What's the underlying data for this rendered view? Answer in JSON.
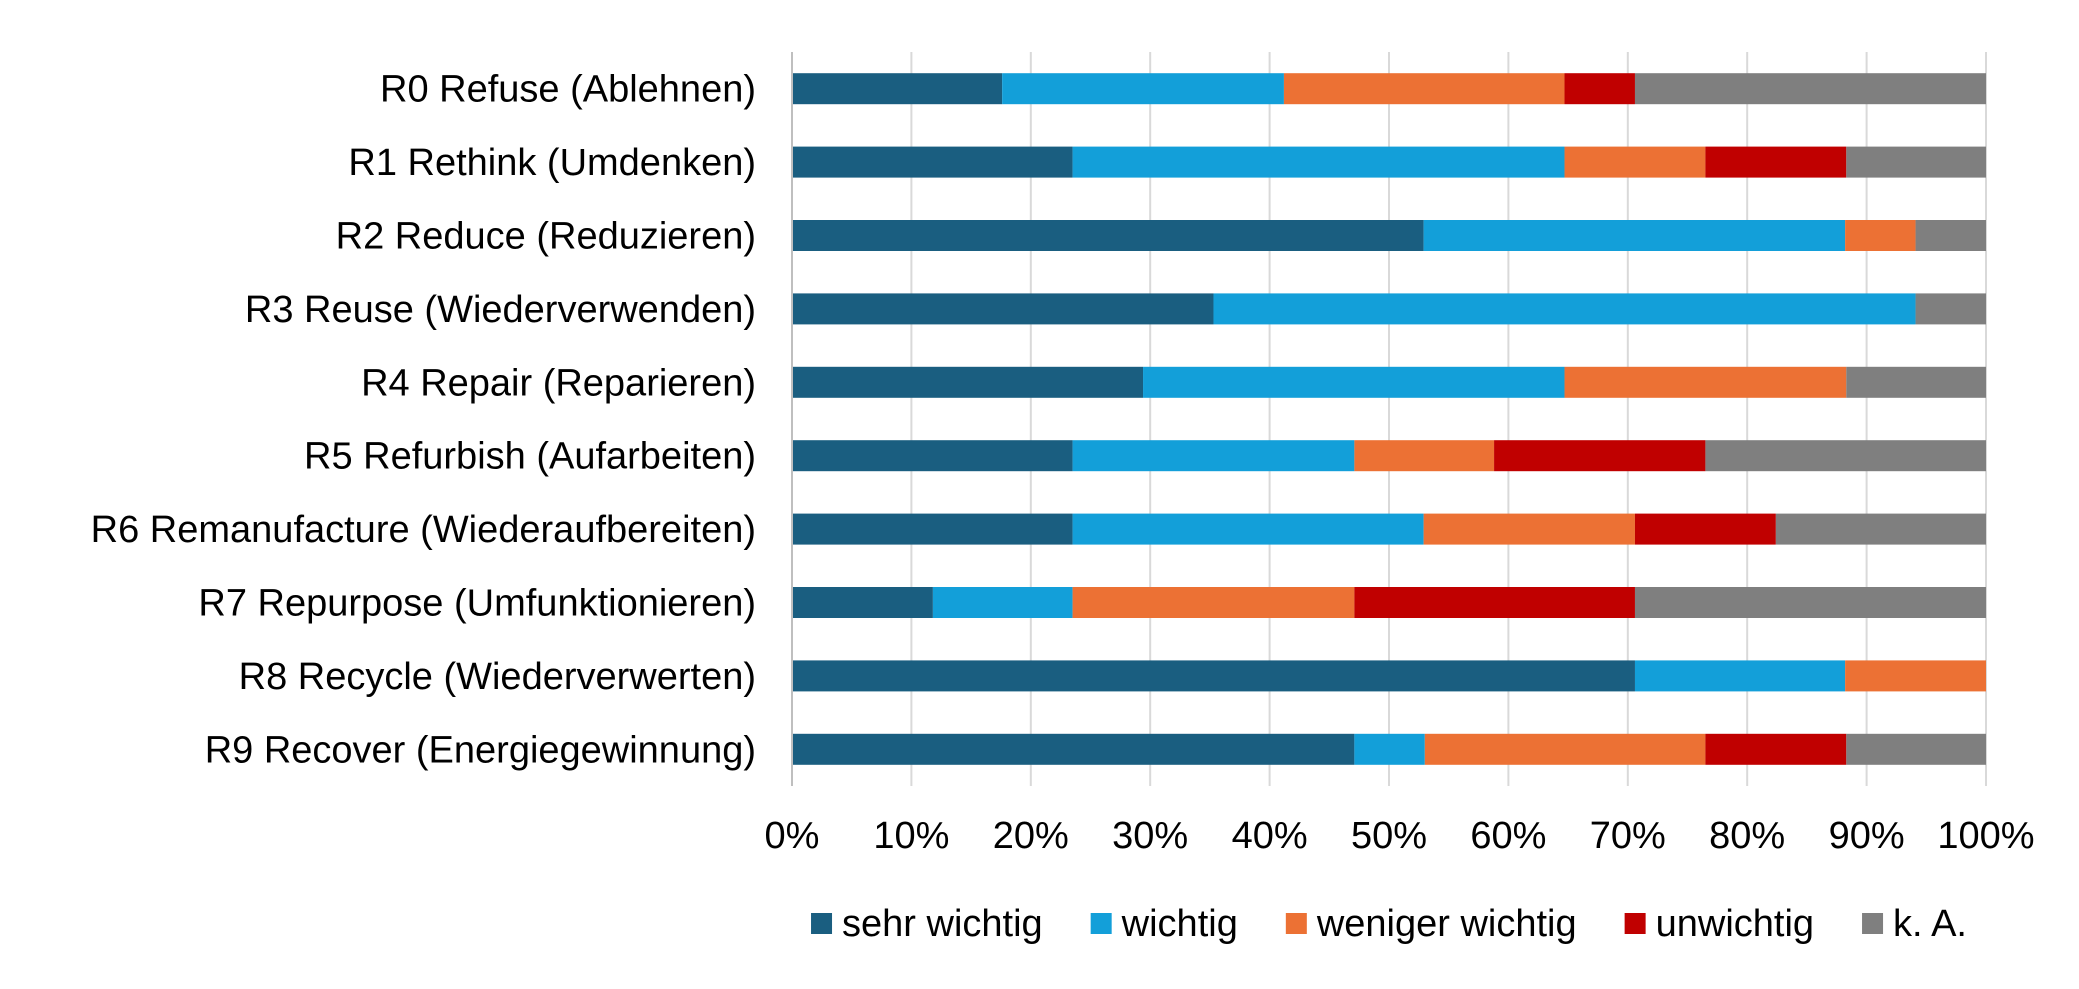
{
  "chart_data": {
    "type": "bar",
    "orientation": "horizontal",
    "stacked": true,
    "percent": true,
    "title": "",
    "xlabel": "",
    "ylabel": "",
    "xlim": [
      0,
      100
    ],
    "x_ticks": [
      "0%",
      "10%",
      "20%",
      "30%",
      "40%",
      "50%",
      "60%",
      "70%",
      "80%",
      "90%",
      "100%"
    ],
    "grid": "vertical",
    "legend_position": "bottom",
    "categories": [
      "R0 Refuse (Ablehnen)",
      "R1 Rethink (Umdenken)",
      "R2 Reduce (Reduzieren)",
      "R3 Reuse (Wiederverwenden)",
      "R4 Repair (Reparieren)",
      "R5 Refurbish (Aufarbeiten)",
      "R6 Remanufacture (Wiederaufbereiten)",
      "R7 Repurpose (Umfunktionieren)",
      "R8 Recycle (Wiederverwerten)",
      "R9 Recover (Energiegewinnung)"
    ],
    "series": [
      {
        "name": "sehr wichtig",
        "color": "#1a5e80",
        "values": [
          17.6,
          23.5,
          52.9,
          35.3,
          29.4,
          23.5,
          23.5,
          11.8,
          70.6,
          47.1
        ]
      },
      {
        "name": "wichtig",
        "color": "#139fd9",
        "values": [
          23.6,
          41.2,
          35.3,
          58.8,
          35.3,
          23.6,
          29.4,
          11.7,
          17.6,
          5.9
        ]
      },
      {
        "name": "weniger wichtig",
        "color": "#ec7134",
        "values": [
          23.5,
          11.8,
          5.9,
          0,
          23.6,
          11.7,
          17.7,
          23.6,
          11.8,
          23.5
        ]
      },
      {
        "name": "unwichtig",
        "color": "#c00000",
        "values": [
          5.9,
          11.8,
          0,
          0,
          0,
          17.7,
          11.8,
          23.5,
          0,
          11.8
        ]
      },
      {
        "name": "k. A.",
        "color": "#7f7f7f",
        "values": [
          29.4,
          11.7,
          5.9,
          5.9,
          11.7,
          23.5,
          17.6,
          29.4,
          0,
          11.7
        ]
      }
    ]
  }
}
